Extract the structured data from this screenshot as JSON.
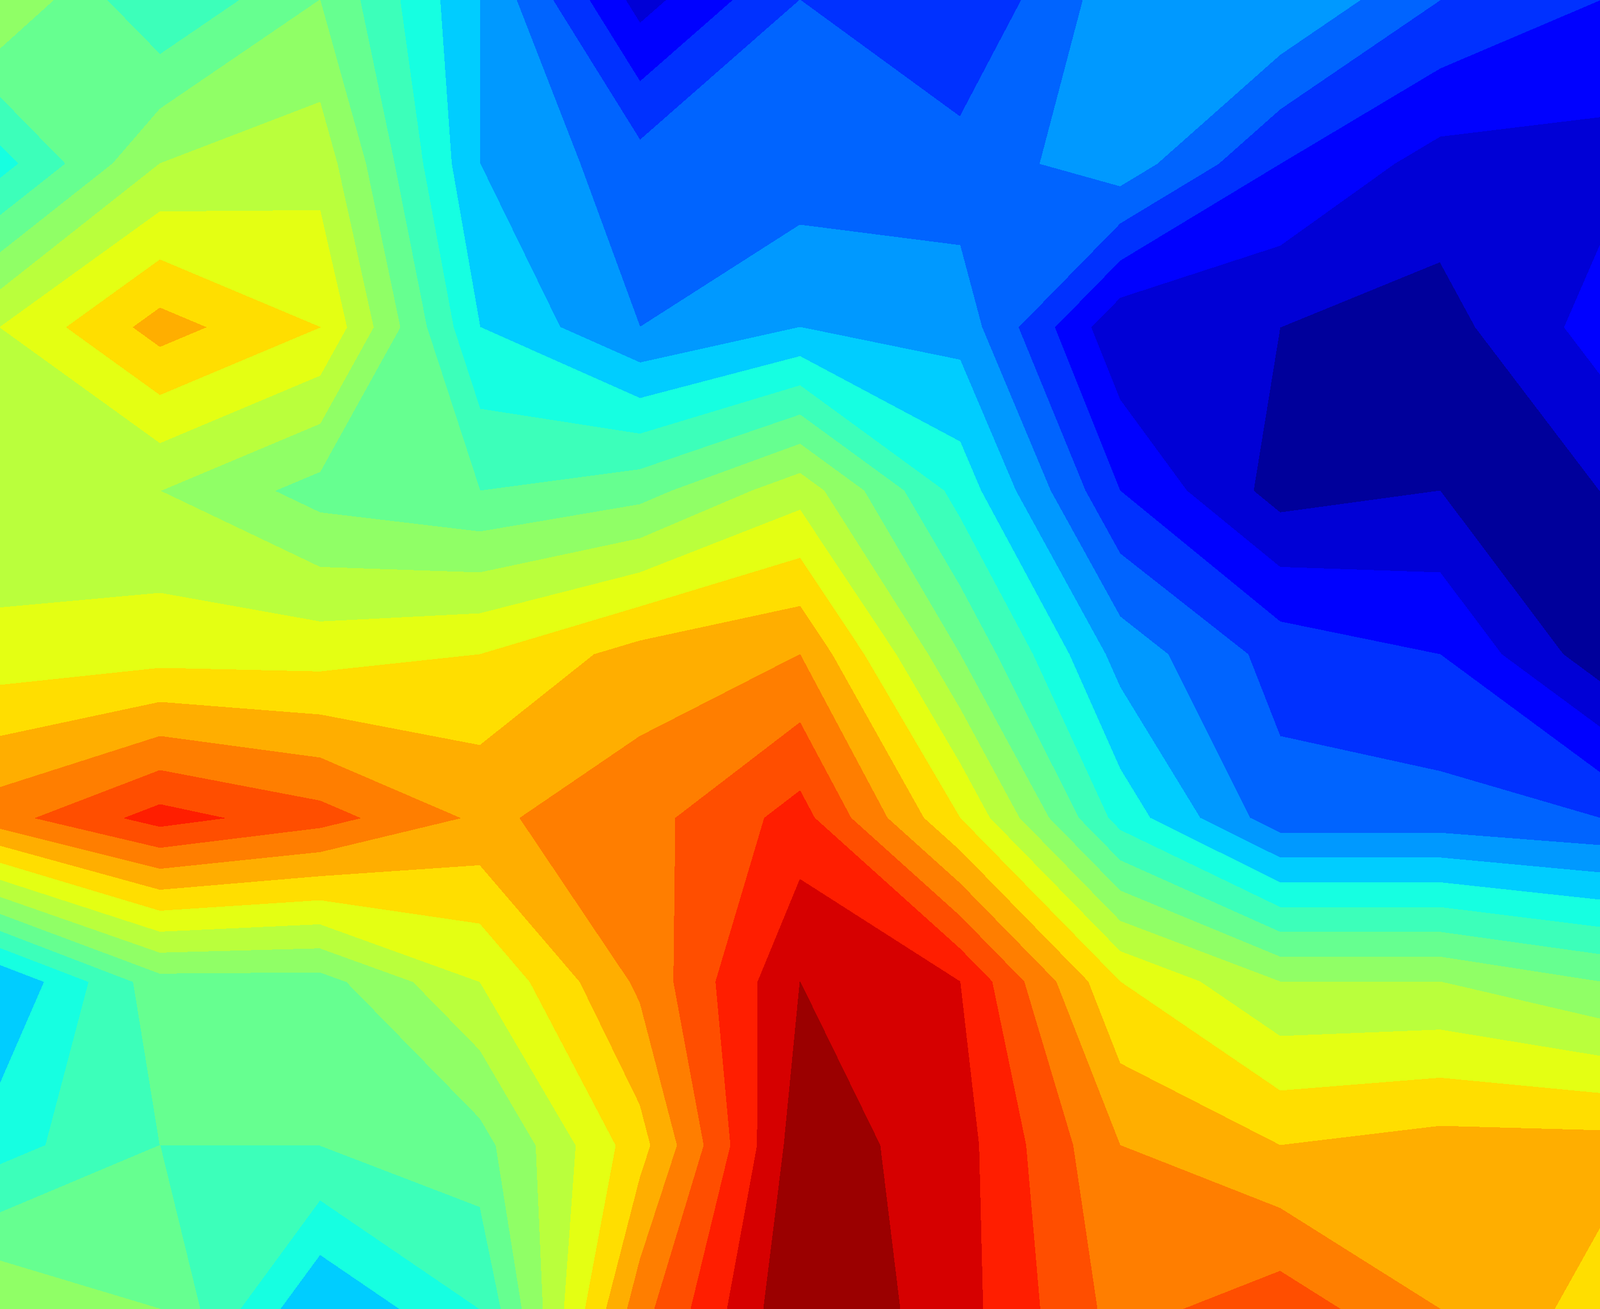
{
  "chart_data": {
    "type": "contour",
    "color": "jet",
    "tick_labels": false,
    "color_range": [
      0,
      1
    ],
    "cells": [
      [
        0.55,
        0.4,
        0.5,
        0.3,
        0.08,
        0.2,
        0.15,
        0.28,
        0.3,
        0.2,
        0.15
      ],
      [
        0.38,
        0.55,
        0.58,
        0.3,
        0.22,
        0.22,
        0.22,
        0.28,
        0.15,
        0.08,
        0.08
      ],
      [
        0.6,
        0.72,
        0.65,
        0.35,
        0.25,
        0.3,
        0.28,
        0.06,
        0.05,
        0.03,
        0.12
      ],
      [
        0.55,
        0.55,
        0.48,
        0.45,
        0.48,
        0.58,
        0.38,
        0.15,
        0.03,
        0.05,
        0.05
      ],
      [
        0.62,
        0.63,
        0.63,
        0.65,
        0.72,
        0.75,
        0.5,
        0.28,
        0.18,
        0.15,
        0.02
      ],
      [
        0.78,
        0.87,
        0.82,
        0.74,
        0.78,
        0.87,
        0.65,
        0.38,
        0.22,
        0.22,
        0.2
      ],
      [
        0.3,
        0.48,
        0.48,
        0.6,
        0.76,
        0.95,
        0.9,
        0.65,
        0.55,
        0.55,
        0.5
      ],
      [
        0.38,
        0.45,
        0.45,
        0.48,
        0.68,
        0.98,
        0.92,
        0.75,
        0.7,
        0.72,
        0.72
      ],
      [
        0.55,
        0.5,
        0.3,
        0.4,
        0.78,
        1.0,
        0.92,
        0.78,
        0.83,
        0.75,
        0.68
      ]
    ]
  }
}
